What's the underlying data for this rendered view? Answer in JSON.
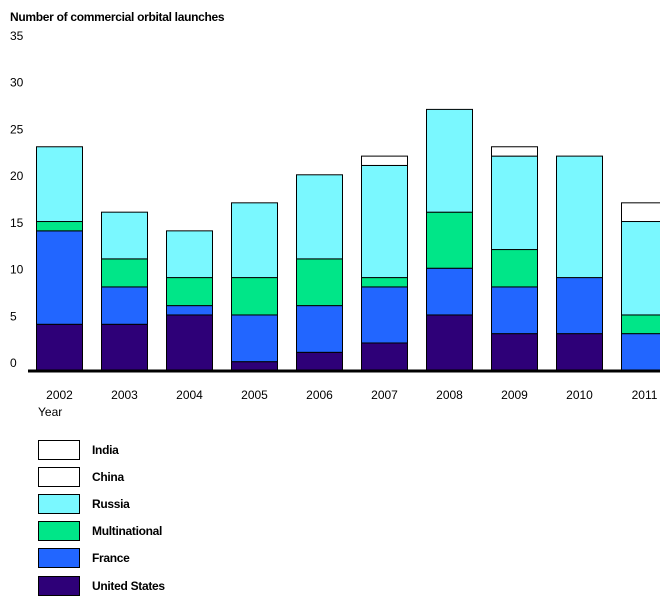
{
  "chart_data": {
    "type": "bar",
    "stacked": true,
    "title": "Number of commercial orbital launches",
    "xlabel": "Year",
    "ylabel": "",
    "ylim": [
      0,
      35
    ],
    "yticks": [
      0,
      5,
      10,
      15,
      20,
      25,
      30,
      35
    ],
    "grid": false,
    "legend_position": "bottom-left",
    "categories": [
      "2002",
      "2003",
      "2004",
      "2005",
      "2006",
      "2007",
      "2008",
      "2009",
      "2010",
      "2011"
    ],
    "series": [
      {
        "name": "United States",
        "color": "#2e0078",
        "values": [
          5,
          5,
          6,
          1,
          2,
          3,
          6,
          4,
          4,
          0
        ]
      },
      {
        "name": "France",
        "color": "#2266ff",
        "values": [
          10,
          4,
          1,
          5,
          5,
          6,
          5,
          5,
          6,
          4
        ]
      },
      {
        "name": "Multinational",
        "color": "#00e688",
        "values": [
          1,
          3,
          3,
          4,
          5,
          1,
          6,
          4,
          0,
          2
        ]
      },
      {
        "name": "Russia",
        "color": "#7af8ff",
        "values": [
          8,
          5,
          5,
          8,
          9,
          12,
          11,
          10,
          13,
          10
        ]
      },
      {
        "name": "China",
        "color": "#ffffff",
        "values": [
          0,
          0,
          0,
          0,
          0,
          1,
          0,
          1,
          0,
          2
        ]
      },
      {
        "name": "India",
        "color": "#ffffff",
        "values": [
          0,
          0,
          0,
          0,
          0,
          0,
          0,
          0,
          0,
          0
        ]
      }
    ]
  }
}
